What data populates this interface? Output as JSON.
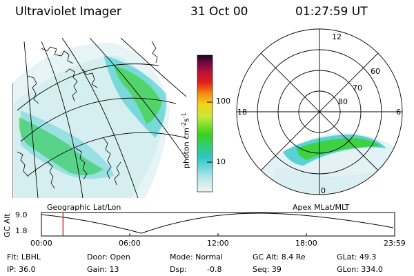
{
  "header": {
    "title": "Ultraviolet Imager",
    "date": "31 Oct 00",
    "time": "01:27:59 UT"
  },
  "map_left": {
    "label": "Geographic Lat/Lon"
  },
  "map_right": {
    "label": "Apex MLat/MLT",
    "mlt_labels": [
      "12",
      "18",
      "6",
      "0"
    ],
    "lat_labels": [
      "60",
      "70",
      "80"
    ]
  },
  "colorbar": {
    "unit_main": "photon cm",
    "unit_exp1": "-2",
    "unit_mid": "s",
    "unit_exp2": "-1",
    "tick_labels": [
      "100",
      "10"
    ]
  },
  "timeline": {
    "ylabel": "GC Alt",
    "ticks_y": [
      "9.0",
      "1.8"
    ],
    "ticks_x": [
      "00:00",
      "06:00",
      "12:00",
      "18:00",
      "23:59"
    ],
    "cursor_hours": 1.4667
  },
  "info": {
    "filter": "Flt: LBHL",
    "ip": "IP: 36.0",
    "door": "Door: Open",
    "gain": "Gain: 13",
    "mode": "Mode: Normal",
    "dsp": "Dsp:",
    "dsp_val": "-0.8",
    "gc_alt": "GC Alt: 8.4 Re",
    "seq": "Seq: 39",
    "glat": "GLat:  49.3",
    "glon": "GLon: 334.0"
  },
  "colors": {
    "cursor": "#cc0000",
    "aurora_green": "#39d11e",
    "aurora_cyan": "#2cc6c9"
  }
}
